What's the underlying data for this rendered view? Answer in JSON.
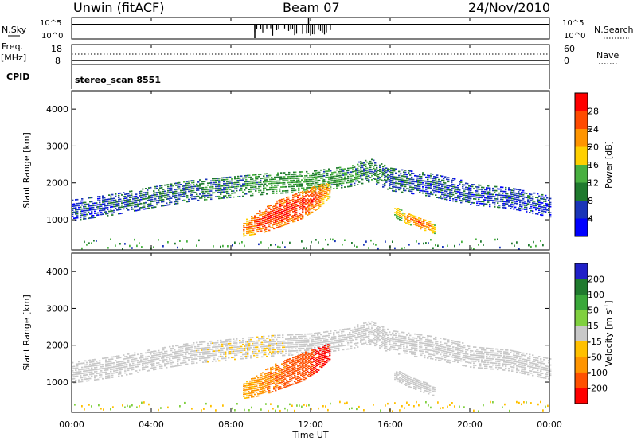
{
  "header": {
    "station": "Unwin (fitACF)",
    "beam": "Beam 07",
    "date": "24/Nov/2010"
  },
  "top_panels": {
    "nsky_label": "N.Sky",
    "nsky_ticks": [
      "10^5",
      "10^0"
    ],
    "nsearch_label": "N.Search",
    "nsearch_ticks": [
      "10^5",
      "10^0"
    ],
    "freq_label": "Freq.",
    "freq_unit": "[MHz]",
    "freq_ticks": [
      "18",
      "8"
    ],
    "nave_label": "Nave",
    "nave_ticks": [
      "60",
      "0"
    ],
    "cpid_label": "CPID",
    "cpid_value": "stereo_scan 8551"
  },
  "colorbars": {
    "power": {
      "label": "Power [dB]",
      "ticks": [
        "28",
        "24",
        "20",
        "16",
        "12",
        "8",
        "4"
      ],
      "colors": [
        "#ff0000",
        "#ff4a00",
        "#ff9500",
        "#ffd000",
        "#48b040",
        "#1f7a2e",
        "#1a35b8",
        "#0000ff"
      ]
    },
    "velocity": {
      "label_main": "Velocity [m s",
      "label_sup": "-1",
      "label_end": "]",
      "ticks": [
        "200",
        "100",
        "50",
        "15",
        "-15",
        "-50",
        "-100",
        "-200"
      ],
      "colors": [
        "#2020c8",
        "#1f7a2e",
        "#3aa83a",
        "#80d040",
        "#c8c8c8",
        "#ffc000",
        "#ff9500",
        "#ff5000",
        "#ff0000"
      ]
    }
  },
  "axes": {
    "ylabel": "Slant Range [km]",
    "xlabel": "Time UT",
    "x_ticks": [
      "00:00",
      "04:00",
      "08:00",
      "12:00",
      "16:00",
      "20:00",
      "00:00"
    ],
    "y_ticks": [
      "4000",
      "3000",
      "2000",
      "1000"
    ]
  },
  "chart_data": [
    {
      "type": "heatmap",
      "quantity": "power",
      "xlabel": "Time UT",
      "ylabel": "Slant Range [km]",
      "xlim": [
        0,
        24
      ],
      "ylim": [
        180,
        4500
      ],
      "colorbar_label": "Power [dB]",
      "colorbar_range": [
        0,
        32
      ],
      "colorbar_ticks": [
        4,
        8,
        12,
        16,
        20,
        24,
        28
      ],
      "bands": [
        {
          "t": [
            0,
            2,
            4,
            6,
            8,
            10,
            12,
            14,
            15,
            16,
            18,
            20,
            22,
            24
          ],
          "r_center": [
            1250,
            1400,
            1600,
            1800,
            1900,
            2000,
            2050,
            2200,
            2350,
            2100,
            1950,
            1700,
            1600,
            1350
          ],
          "width_km": [
            280,
            280,
            280,
            300,
            300,
            300,
            300,
            300,
            320,
            320,
            320,
            300,
            300,
            280
          ],
          "power_db": [
            6,
            7,
            8,
            9,
            10,
            12,
            12,
            11,
            10,
            8,
            7,
            7,
            6,
            6
          ]
        },
        {
          "t": [
            8.6,
            9.5,
            10.5,
            11.5,
            12.3,
            13
          ],
          "r_center": [
            750,
            950,
            1200,
            1400,
            1600,
            1850
          ],
          "width_km": [
            200,
            320,
            380,
            380,
            320,
            200
          ],
          "power_db": [
            24,
            29,
            30,
            29,
            27,
            22
          ]
        },
        {
          "t": [
            16.2,
            16.8,
            17.5,
            18.2
          ],
          "r_center": [
            1200,
            1050,
            900,
            750
          ],
          "width_km": [
            130,
            160,
            160,
            130
          ],
          "power_db": [
            18,
            23,
            26,
            22
          ]
        }
      ]
    },
    {
      "type": "heatmap",
      "quantity": "velocity",
      "xlabel": "Time UT",
      "ylabel": "Slant Range [km]",
      "xlim": [
        0,
        24
      ],
      "ylim": [
        180,
        4500
      ],
      "colorbar_label": "Velocity [m s-1]",
      "colorbar_range": [
        -250,
        250
      ],
      "colorbar_ticks": [
        -200,
        -100,
        -50,
        -15,
        15,
        50,
        100,
        200
      ],
      "bands": [
        {
          "t": [
            0,
            2,
            4,
            6,
            8,
            10,
            12,
            14,
            15,
            16,
            18,
            20,
            22,
            24
          ],
          "r_center": [
            1250,
            1400,
            1600,
            1800,
            1900,
            2000,
            2050,
            2200,
            2350,
            2100,
            1950,
            1700,
            1600,
            1350
          ],
          "width_km": [
            280,
            280,
            280,
            300,
            300,
            300,
            300,
            300,
            320,
            320,
            320,
            300,
            300,
            280
          ],
          "velocity": [
            0,
            0,
            0,
            -5,
            -10,
            -10,
            0,
            0,
            0,
            5,
            0,
            0,
            0,
            0
          ]
        },
        {
          "t": [
            8.6,
            9.5,
            10.5,
            11.5,
            12.3,
            13
          ],
          "r_center": [
            750,
            950,
            1200,
            1400,
            1600,
            1850
          ],
          "width_km": [
            200,
            320,
            380,
            380,
            320,
            200
          ],
          "velocity": [
            -50,
            -80,
            -110,
            -160,
            -210,
            -220
          ]
        },
        {
          "t": [
            16.2,
            16.8,
            17.5,
            18.2
          ],
          "r_center": [
            1200,
            1050,
            900,
            750
          ],
          "width_km": [
            130,
            160,
            160,
            130
          ],
          "velocity": [
            0,
            0,
            0,
            0
          ]
        }
      ]
    }
  ]
}
